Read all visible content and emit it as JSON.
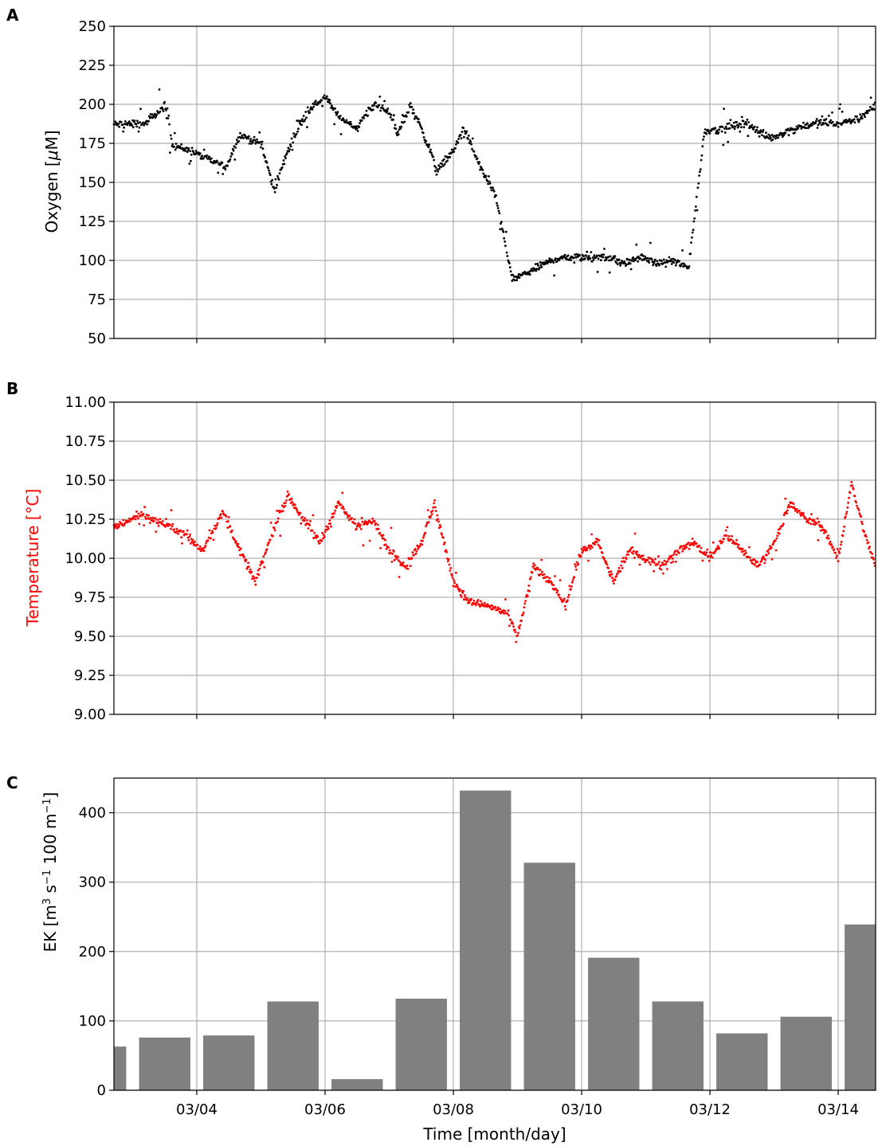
{
  "chart_data": [
    {
      "panel": "A",
      "type": "scatter",
      "ylabel": "Oxygen [μM]",
      "ylabel_prefix": "Oxygen [",
      "ylabel_mu": "μ",
      "ylabel_suffix": "M]",
      "ylim": [
        50,
        250
      ],
      "yticks": [
        "50",
        "75",
        "100",
        "125",
        "150",
        "175",
        "200",
        "225",
        "250"
      ],
      "xlim": [
        "03/02 17:00",
        "03/14 14:00"
      ],
      "x_gridlines": [
        "03/04",
        "03/06",
        "03/08",
        "03/10",
        "03/12",
        "03/14"
      ],
      "grid": true,
      "color": "#000000",
      "trend": [
        [
          "03/02 17:00",
          187
        ],
        [
          "03/03 05:00",
          188
        ],
        [
          "03/03 12:00",
          199
        ],
        [
          "03/03 15:00",
          174
        ],
        [
          "03/03 22:00",
          170
        ],
        [
          "03/04 04:00",
          165
        ],
        [
          "03/04 11:00",
          160
        ],
        [
          "03/04 16:00",
          180
        ],
        [
          "03/05 00:00",
          175
        ],
        [
          "03/05 05:00",
          145
        ],
        [
          "03/05 10:00",
          170
        ],
        [
          "03/05 17:00",
          195
        ],
        [
          "03/06 00:00",
          205
        ],
        [
          "03/06 05:00",
          192
        ],
        [
          "03/06 12:00",
          185
        ],
        [
          "03/06 18:00",
          200
        ],
        [
          "03/07 00:00",
          196
        ],
        [
          "03/07 03:00",
          180
        ],
        [
          "03/07 08:00",
          200
        ],
        [
          "03/07 12:00",
          185
        ],
        [
          "03/07 18:00",
          158
        ],
        [
          "03/08 00:00",
          170
        ],
        [
          "03/08 04:00",
          185
        ],
        [
          "03/08 10:00",
          160
        ],
        [
          "03/08 16:00",
          140
        ],
        [
          "03/08 22:00",
          88
        ],
        [
          "03/09 04:00",
          92
        ],
        [
          "03/09 10:00",
          98
        ],
        [
          "03/09 16:00",
          102
        ],
        [
          "03/09 22:00",
          102
        ],
        [
          "03/10 04:00",
          102
        ],
        [
          "03/10 10:00",
          102
        ],
        [
          "03/10 16:00",
          98
        ],
        [
          "03/10 22:00",
          102
        ],
        [
          "03/11 04:00",
          98
        ],
        [
          "03/11 10:00",
          100
        ],
        [
          "03/11 16:00",
          95
        ],
        [
          "03/11 22:00",
          183
        ],
        [
          "03/12 06:00",
          185
        ],
        [
          "03/12 14:00",
          188
        ],
        [
          "03/12 22:00",
          178
        ],
        [
          "03/13 08:00",
          185
        ],
        [
          "03/13 16:00",
          188
        ],
        [
          "03/14 00:00",
          188
        ],
        [
          "03/14 06:00",
          190
        ],
        [
          "03/14 14:00",
          198
        ]
      ]
    },
    {
      "panel": "B",
      "type": "scatter",
      "ylabel": "Temperature [°C]",
      "ylabel_color": "#ff0000",
      "ylim": [
        9.0,
        11.0
      ],
      "yticks": [
        "9.00",
        "9.25",
        "9.50",
        "9.75",
        "10.00",
        "10.25",
        "10.50",
        "10.75",
        "11.00"
      ],
      "xlim": [
        "03/02 17:00",
        "03/14 14:00"
      ],
      "x_gridlines": [
        "03/04",
        "03/06",
        "03/08",
        "03/10",
        "03/12",
        "03/14"
      ],
      "grid": true,
      "color": "#ff0000",
      "trend": [
        [
          "03/02 17:00",
          10.2
        ],
        [
          "03/03 03:00",
          10.28
        ],
        [
          "03/03 12:00",
          10.22
        ],
        [
          "03/03 20:00",
          10.15
        ],
        [
          "03/04 02:00",
          10.05
        ],
        [
          "03/04 10:00",
          10.3
        ],
        [
          "03/04 16:00",
          10.05
        ],
        [
          "03/04 22:00",
          9.85
        ],
        [
          "03/05 04:00",
          10.15
        ],
        [
          "03/05 10:00",
          10.4
        ],
        [
          "03/05 16:00",
          10.25
        ],
        [
          "03/05 22:00",
          10.1
        ],
        [
          "03/06 05:00",
          10.35
        ],
        [
          "03/06 12:00",
          10.2
        ],
        [
          "03/06 18:00",
          10.25
        ],
        [
          "03/07 00:00",
          10.05
        ],
        [
          "03/07 06:00",
          9.95
        ],
        [
          "03/07 12:00",
          10.1
        ],
        [
          "03/07 17:00",
          10.35
        ],
        [
          "03/08 00:00",
          9.85
        ],
        [
          "03/08 06:00",
          9.72
        ],
        [
          "03/08 12:00",
          9.7
        ],
        [
          "03/08 20:00",
          9.65
        ],
        [
          "03/09 00:00",
          9.5
        ],
        [
          "03/09 06:00",
          9.95
        ],
        [
          "03/09 12:00",
          9.85
        ],
        [
          "03/09 18:00",
          9.7
        ],
        [
          "03/10 00:00",
          10.05
        ],
        [
          "03/10 06:00",
          10.1
        ],
        [
          "03/10 12:00",
          9.85
        ],
        [
          "03/10 18:00",
          10.05
        ],
        [
          "03/11 00:00",
          10.0
        ],
        [
          "03/11 06:00",
          9.95
        ],
        [
          "03/11 12:00",
          10.05
        ],
        [
          "03/11 18:00",
          10.1
        ],
        [
          "03/12 00:00",
          10.0
        ],
        [
          "03/12 06:00",
          10.15
        ],
        [
          "03/12 12:00",
          10.05
        ],
        [
          "03/12 18:00",
          9.95
        ],
        [
          "03/13 00:00",
          10.1
        ],
        [
          "03/13 06:00",
          10.35
        ],
        [
          "03/13 12:00",
          10.25
        ],
        [
          "03/13 18:00",
          10.2
        ],
        [
          "03/14 00:00",
          10.0
        ],
        [
          "03/14 05:00",
          10.48
        ],
        [
          "03/14 10:00",
          10.15
        ],
        [
          "03/14 14:00",
          9.95
        ]
      ]
    },
    {
      "panel": "C",
      "type": "bar",
      "ylabel": "EK [m³ s⁻¹ 100 m⁻¹]",
      "ylabel_parts": [
        {
          "t": "EK [m"
        },
        {
          "t": "3",
          "sup": true
        },
        {
          "t": " s"
        },
        {
          "t": "−1",
          "sup": true
        },
        {
          "t": " 100 m"
        },
        {
          "t": "−1",
          "sup": true
        },
        {
          "t": "]"
        }
      ],
      "xlabel": "Time [month/day]",
      "ylim": [
        0,
        450
      ],
      "yticks": [
        "0",
        "100",
        "200",
        "300",
        "400"
      ],
      "xlim": [
        "03/02 17:00",
        "03/14 14:00"
      ],
      "xticks": [
        "03/04",
        "03/06",
        "03/08",
        "03/10",
        "03/12",
        "03/14"
      ],
      "grid": true,
      "color": "#808080",
      "bars": [
        {
          "center": "03/02 12:00",
          "value": 63
        },
        {
          "center": "03/03 12:00",
          "value": 76
        },
        {
          "center": "03/04 12:00",
          "value": 79
        },
        {
          "center": "03/05 12:00",
          "value": 128
        },
        {
          "center": "03/06 12:00",
          "value": 16
        },
        {
          "center": "03/07 12:00",
          "value": 132
        },
        {
          "center": "03/08 12:00",
          "value": 432
        },
        {
          "center": "03/09 12:00",
          "value": 328
        },
        {
          "center": "03/10 12:00",
          "value": 191
        },
        {
          "center": "03/11 12:00",
          "value": 128
        },
        {
          "center": "03/12 12:00",
          "value": 82
        },
        {
          "center": "03/13 12:00",
          "value": 106
        },
        {
          "center": "03/14 12:00",
          "value": 239
        }
      ],
      "bar_width_days": 0.8
    }
  ]
}
